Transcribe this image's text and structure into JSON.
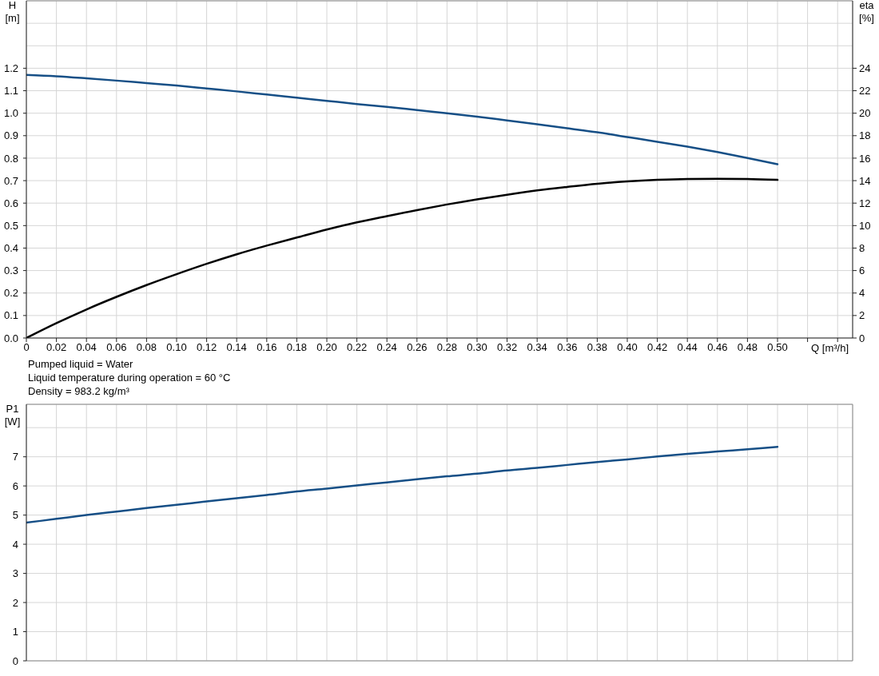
{
  "chart_data": [
    {
      "type": "line",
      "x": [
        0,
        0.02,
        0.04,
        0.06,
        0.08,
        0.1,
        0.12,
        0.14,
        0.16,
        0.18,
        0.2,
        0.22,
        0.24,
        0.26,
        0.28,
        0.3,
        0.32,
        0.34,
        0.36,
        0.38,
        0.4,
        0.42,
        0.44,
        0.46,
        0.48,
        0.5
      ],
      "xlim": [
        0,
        0.55
      ],
      "xticks": [
        0,
        0.02,
        0.04,
        0.06,
        0.08,
        {
          "value": 0.1,
          "label": "0.10"
        },
        0.12,
        0.14,
        0.16,
        0.18,
        {
          "value": 0.2,
          "label": "0.20"
        },
        0.22,
        0.24,
        0.26,
        0.28,
        {
          "value": 0.3,
          "label": "0.30"
        },
        0.32,
        0.34,
        0.36,
        0.38,
        {
          "value": 0.4,
          "label": "0.40"
        },
        0.42,
        0.44,
        0.46,
        0.48,
        {
          "value": 0.5,
          "label": "0.50"
        },
        {
          "value": 0.52,
          "label": null
        },
        {
          "value": 0.54,
          "label": null
        }
      ],
      "ylim": [
        0,
        1.5
      ],
      "yticks": [
        {
          "value": 0,
          "label": "0.0"
        },
        0.1,
        0.2,
        0.3,
        0.4,
        0.5,
        0.6,
        0.7,
        0.8,
        0.9,
        {
          "value": 1,
          "label": "1.0"
        },
        1.1,
        1.2,
        {
          "value": 1.3,
          "label": null
        },
        {
          "value": 1.4,
          "label": null
        }
      ],
      "y2lim": [
        0,
        30
      ],
      "y2ticks": [
        0,
        2,
        4,
        6,
        8,
        10,
        12,
        14,
        16,
        18,
        20,
        22,
        24
      ],
      "xlabel": "Q [m³/h]",
      "ylabel": "H [m]",
      "y2label": "eta [%]",
      "grid": true,
      "series": [
        {
          "color": "#164f86",
          "values": [
            1.17,
            1.164,
            1.155,
            1.145,
            1.134,
            1.123,
            1.11,
            1.097,
            1.083,
            1.069,
            1.055,
            1.041,
            1.028,
            1.014,
            1.0,
            0.985,
            0.968,
            0.951,
            0.933,
            0.915,
            0.894,
            0.873,
            0.851,
            0.827,
            0.801,
            0.773
          ]
        },
        {
          "color": "#000000",
          "axis": "y2",
          "values": [
            0,
            1.32,
            2.54,
            3.66,
            4.71,
            5.68,
            6.6,
            7.45,
            8.22,
            8.94,
            9.65,
            10.29,
            10.84,
            11.38,
            11.88,
            12.33,
            12.75,
            13.13,
            13.44,
            13.72,
            13.93,
            14.07,
            14.15,
            14.17,
            14.15,
            14.07
          ]
        }
      ],
      "annotations": [
        "Pumped liquid = Water",
        "Liquid temperature during operation = 60 °C",
        "Density = 983.2 kg/m³"
      ]
    },
    {
      "type": "line",
      "x": [
        0,
        0.02,
        0.04,
        0.06,
        0.08,
        0.1,
        0.12,
        0.14,
        0.16,
        0.18,
        0.2,
        0.22,
        0.24,
        0.26,
        0.28,
        0.3,
        0.32,
        0.34,
        0.36,
        0.38,
        0.4,
        0.42,
        0.44,
        0.46,
        0.48,
        0.5
      ],
      "xlim": [
        0,
        0.55
      ],
      "xticks": [
        0,
        0.02,
        0.04,
        0.06,
        0.08,
        0.1,
        0.12,
        0.14,
        0.16,
        0.18,
        0.2,
        0.22,
        0.24,
        0.26,
        0.28,
        0.3,
        0.32,
        0.34,
        0.36,
        0.38,
        0.4,
        0.42,
        0.44,
        0.46,
        0.48,
        0.5,
        0.52,
        0.54
      ],
      "ylim": [
        0,
        8.8
      ],
      "yticks": [
        0,
        1,
        2,
        3,
        4,
        5,
        6,
        7,
        {
          "value": 8,
          "label": null
        }
      ],
      "ylabel": "P1 [W]",
      "grid": true,
      "tick_labels": "y",
      "series": [
        {
          "color": "#164f86",
          "values": [
            4.74,
            4.87,
            5.0,
            5.12,
            5.24,
            5.35,
            5.47,
            5.58,
            5.69,
            5.81,
            5.91,
            6.02,
            6.12,
            6.23,
            6.33,
            6.42,
            6.53,
            6.62,
            6.72,
            6.82,
            6.91,
            7.01,
            7.1,
            7.18,
            7.26,
            7.34
          ]
        }
      ]
    }
  ]
}
